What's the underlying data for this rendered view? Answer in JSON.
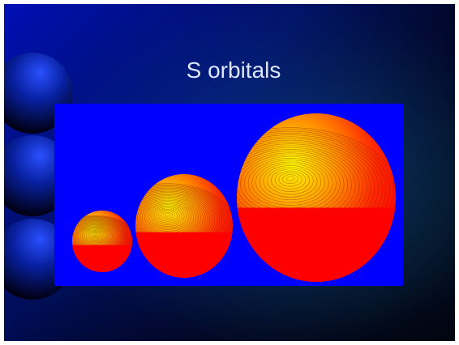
{
  "title": "S orbitals"
}
